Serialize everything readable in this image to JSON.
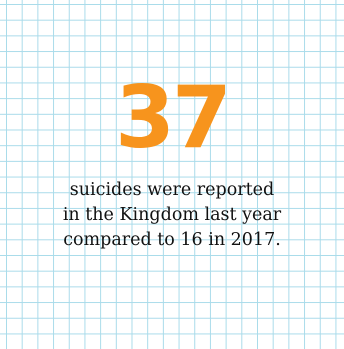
{
  "stat": {
    "value": "37",
    "caption_lines": [
      "suicides were reported",
      "in the Kingdom last year",
      "compared to 16 in 2017."
    ]
  },
  "colors": {
    "number": "#f7941d",
    "grid": "#a9dbea",
    "text": "#111111",
    "background": "#ffffff"
  }
}
